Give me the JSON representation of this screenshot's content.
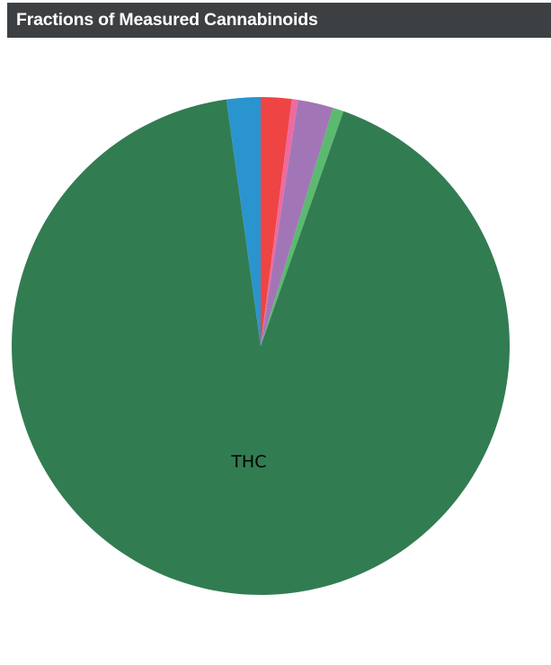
{
  "panel": {
    "title": "Fractions of Measured Cannabinoids"
  },
  "chart_data": {
    "type": "pie",
    "title": "Fractions of Measured Cannabinoids",
    "start_angle_deg": 0,
    "direction": "clockwise",
    "slices": [
      {
        "label": "",
        "value": 2.0,
        "color": "#ef4444"
      },
      {
        "label": "",
        "value": 0.4,
        "color": "#ec6aa0"
      },
      {
        "label": "",
        "value": 2.3,
        "color": "#a276b6"
      },
      {
        "label": "",
        "value": 0.7,
        "color": "#5bba6f"
      },
      {
        "label": "THC",
        "value": 92.4,
        "color": "#327c52"
      },
      {
        "label": "",
        "value": 2.2,
        "color": "#2a94cf"
      }
    ]
  }
}
